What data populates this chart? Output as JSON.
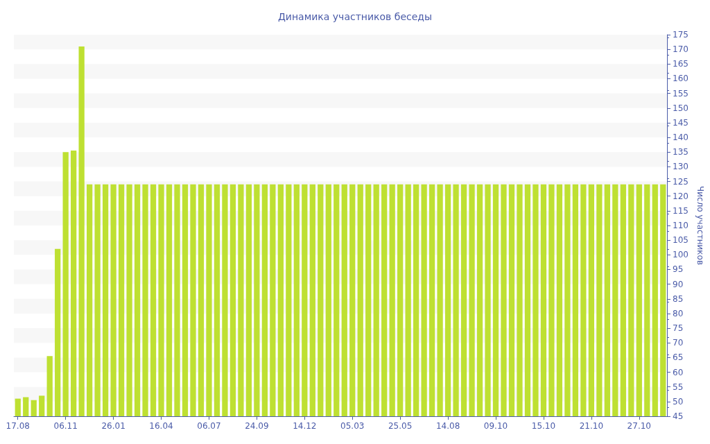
{
  "chart_data": {
    "type": "bar",
    "title": "Динамика участников беседы",
    "ylabel": "Число участников",
    "color": "#bee032",
    "categories": [
      "17.08",
      null,
      null,
      null,
      null,
      null,
      "06.11",
      null,
      null,
      null,
      null,
      null,
      "26.01",
      null,
      null,
      null,
      null,
      null,
      "16.04",
      null,
      null,
      null,
      null,
      null,
      "06.07",
      null,
      null,
      null,
      null,
      null,
      "24.09",
      null,
      null,
      null,
      null,
      null,
      "14.12",
      null,
      null,
      null,
      null,
      null,
      "05.03",
      null,
      null,
      null,
      null,
      null,
      "25.05",
      null,
      null,
      null,
      null,
      null,
      "14.08",
      null,
      null,
      null,
      null,
      null,
      "09.10",
      null,
      null,
      null,
      null,
      null,
      "15.10",
      null,
      null,
      null,
      null,
      null,
      "21.10",
      null,
      null,
      null,
      null,
      null,
      "27.10",
      null,
      null,
      null
    ],
    "values": [
      51,
      51.5,
      50.5,
      52,
      65.5,
      102,
      135,
      135.5,
      171,
      124,
      124,
      124,
      124,
      124,
      124,
      124,
      124,
      124,
      124,
      124,
      124,
      124,
      124,
      124,
      124,
      124,
      124,
      124,
      124,
      124,
      124,
      124,
      124,
      124,
      124,
      124,
      124,
      124,
      124,
      124,
      124,
      124,
      124,
      124,
      124,
      124,
      124,
      124,
      124,
      124,
      124,
      124,
      124,
      124,
      124,
      124,
      124,
      124,
      124,
      124,
      124,
      124,
      124,
      124,
      124,
      124,
      124,
      124,
      124,
      124,
      124,
      124,
      124,
      124,
      124,
      124,
      124,
      124,
      124,
      124,
      124,
      124
    ],
    "ylim": [
      45,
      175
    ],
    "yticks": [
      45,
      50,
      55,
      60,
      65,
      70,
      75,
      80,
      85,
      90,
      95,
      100,
      105,
      110,
      115,
      120,
      125,
      130,
      135,
      140,
      145,
      150,
      155,
      160,
      165,
      170,
      175
    ],
    "grid": false
  }
}
